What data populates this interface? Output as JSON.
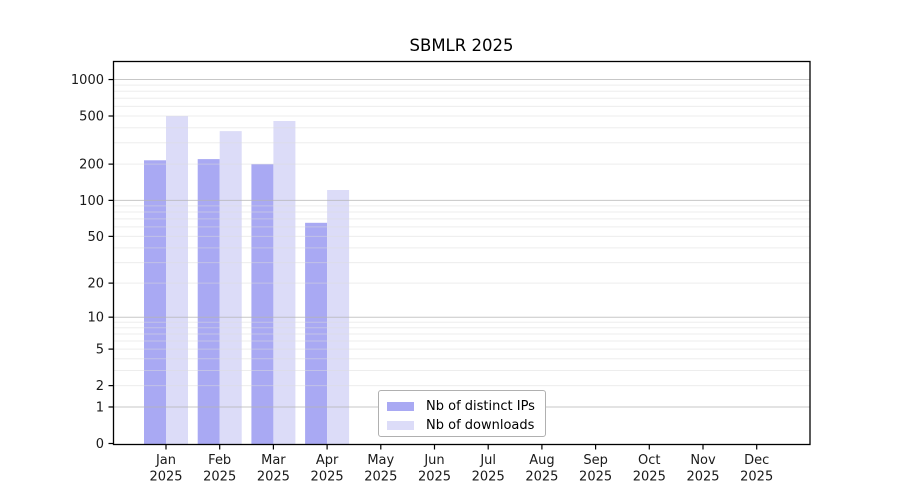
{
  "title": "SBMLR 2025",
  "chart_data": {
    "type": "bar",
    "title": "SBMLR 2025",
    "categories": [
      "Jan",
      "Feb",
      "Mar",
      "Apr",
      "May",
      "Jun",
      "Jul",
      "Aug",
      "Sep",
      "Oct",
      "Nov",
      "Dec"
    ],
    "year_label": "2025",
    "series": [
      {
        "name": "Nb of distinct IPs",
        "color": "#a9a9f3",
        "values": [
          215,
          220,
          200,
          65,
          0,
          0,
          0,
          0,
          0,
          0,
          0,
          0
        ]
      },
      {
        "name": "Nb of downloads",
        "color": "#dcdcf8",
        "values": [
          500,
          375,
          455,
          122,
          0,
          0,
          0,
          0,
          0,
          0,
          0,
          0
        ]
      }
    ],
    "y_axis": {
      "scale": "log10(1+v)",
      "tick_values": [
        0,
        1,
        2,
        5,
        10,
        20,
        50,
        100,
        200,
        500,
        1000
      ],
      "major_grid_values": [
        1,
        10,
        100,
        1000
      ],
      "minor_grid_values": [
        2,
        3,
        4,
        5,
        6,
        7,
        8,
        9,
        20,
        30,
        40,
        50,
        60,
        70,
        80,
        90,
        200,
        300,
        400,
        500,
        600,
        700,
        800,
        900
      ],
      "range_top_value": 1400
    },
    "x_axis": {
      "tick_labels_line1": [
        "Jan",
        "Feb",
        "Mar",
        "Apr",
        "May",
        "Jun",
        "Jul",
        "Aug",
        "Sep",
        "Oct",
        "Nov",
        "Dec"
      ],
      "tick_labels_line2": "2025"
    },
    "legend": {
      "position": "lower center",
      "items": [
        "Nb of distinct IPs",
        "Nb of downloads"
      ]
    },
    "grid": "horizontal major+minor, drawn over bars"
  },
  "colors": {
    "background": "#ffffff",
    "axis_frame": "#000000",
    "tick_text": "#1a1a1a",
    "grid_minor": "rgba(220,220,220,0.5)",
    "grid_major": "rgba(180,180,180,0.75)",
    "legend_border": "#b0b0b0"
  }
}
